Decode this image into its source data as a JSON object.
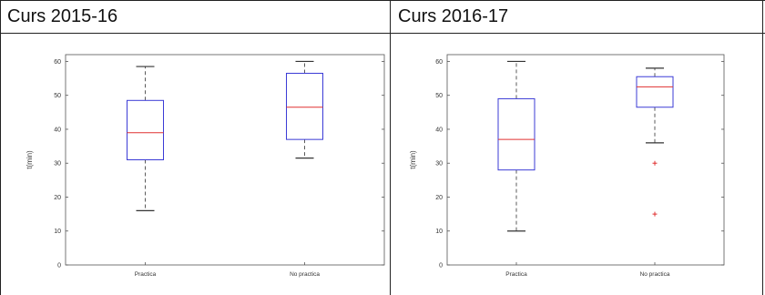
{
  "table": {
    "headers": [
      "Curs 2015-16",
      "Curs 2016-17"
    ]
  },
  "chart_data": [
    {
      "type": "box",
      "title": "",
      "xlabel": "",
      "ylabel": "t(min)",
      "ylim": [
        0,
        62
      ],
      "yticks": [
        0,
        10,
        20,
        30,
        40,
        50,
        60
      ],
      "categories": [
        "Practica",
        "No practica"
      ],
      "boxes": [
        {
          "category": "Practica",
          "whisker_low": 16,
          "q1": 31,
          "median": 39,
          "q3": 48.5,
          "whisker_high": 58.5,
          "outliers": []
        },
        {
          "category": "No practica",
          "whisker_low": 31.5,
          "q1": 37,
          "median": 46.5,
          "q3": 56.5,
          "whisker_high": 60,
          "outliers": []
        }
      ],
      "colors": {
        "box": "#3b3bd6",
        "median": "#e03030",
        "whisker": "#333333",
        "outlier": "#e03030"
      }
    },
    {
      "type": "box",
      "title": "",
      "xlabel": "",
      "ylabel": "t(min)",
      "ylim": [
        0,
        62
      ],
      "yticks": [
        0,
        10,
        20,
        30,
        40,
        50,
        60
      ],
      "categories": [
        "Practica",
        "No practica"
      ],
      "boxes": [
        {
          "category": "Practica",
          "whisker_low": 10,
          "q1": 28,
          "median": 37,
          "q3": 49,
          "whisker_high": 60,
          "outliers": []
        },
        {
          "category": "No practica",
          "whisker_low": 36,
          "q1": 46.5,
          "median": 52.5,
          "q3": 55.5,
          "whisker_high": 58,
          "outliers": [
            30,
            15
          ]
        }
      ],
      "colors": {
        "box": "#3b3bd6",
        "median": "#e03030",
        "whisker": "#333333",
        "outlier": "#e03030"
      }
    }
  ]
}
